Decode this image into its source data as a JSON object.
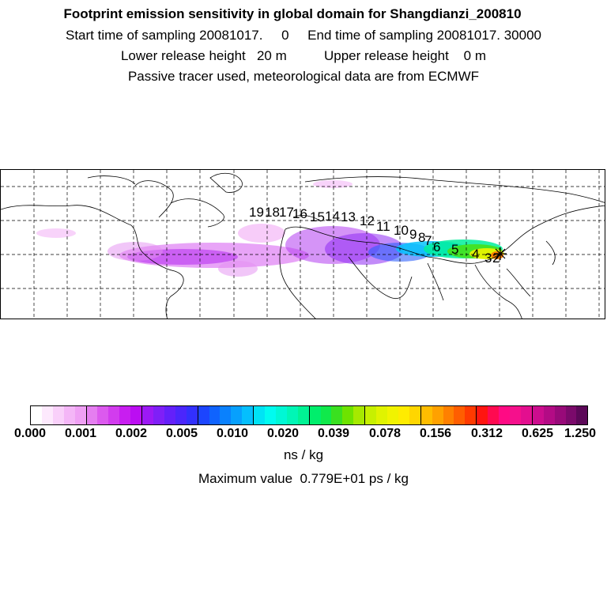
{
  "header": {
    "title": "Footprint emission sensitivity in global domain for Shangdianzi_200810",
    "line2": "Start time of sampling 20081017.     0     End time of sampling 20081017. 30000",
    "line3": "Lower release height   20 m          Upper release height    0 m",
    "line4": "Passive tracer used, meteorological data are from ECMWF"
  },
  "map": {
    "trajectory_labels": [
      "19",
      "18",
      "17",
      "16",
      "15",
      "14",
      "13",
      "12",
      "11",
      "10",
      "9",
      "8",
      "7",
      "6",
      "5",
      "4",
      "3",
      "2"
    ],
    "station_marker": "star-icon"
  },
  "colorbar": {
    "tick_labels": [
      "0.000",
      "0.001",
      "0.002",
      "0.005",
      "0.010",
      "0.020",
      "0.039",
      "0.078",
      "0.156",
      "0.312",
      "0.625",
      "1.250"
    ],
    "colors": [
      "#ffffff",
      "#fde9fd",
      "#f9d0fa",
      "#f4b6f7",
      "#efa0f4",
      "#e57ef0",
      "#dc5aee",
      "#d23cee",
      "#c81ef0",
      "#bb0df2",
      "#9c19f5",
      "#7f1ff7",
      "#6420fa",
      "#4b26fc",
      "#3230fd",
      "#1c45fe",
      "#0f63fe",
      "#0a81fd",
      "#07a0fd",
      "#05bffd",
      "#00e3f5",
      "#00fbf0",
      "#00f7d5",
      "#00f6b6",
      "#00f394",
      "#00ee6c",
      "#10e94b",
      "#3ae020",
      "#6ee300",
      "#a6e900",
      "#c7f000",
      "#e0f300",
      "#f1f300",
      "#ffec00",
      "#ffd600",
      "#ffbd00",
      "#ffa100",
      "#ff8000",
      "#ff5e00",
      "#ff3a00",
      "#ff1510",
      "#ff0a50",
      "#ff0a84",
      "#f5108c",
      "#e30f8f",
      "#cc0d8e",
      "#b30b85",
      "#980a79",
      "#7b0a6b",
      "#5c0858"
    ],
    "units": "ns / kg"
  },
  "footer": {
    "max_value": "Maximum value  0.779E+01 ps / kg"
  }
}
